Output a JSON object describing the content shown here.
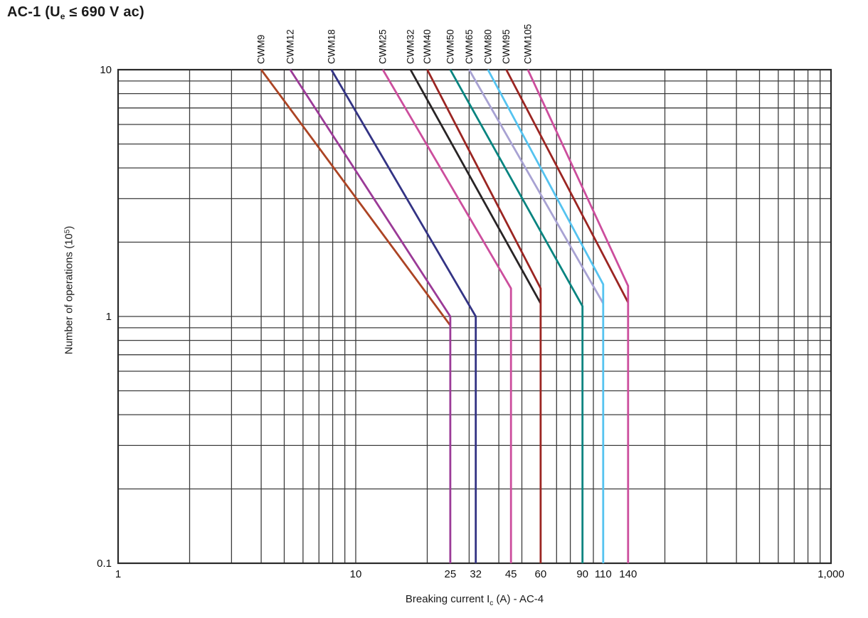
{
  "header": {
    "title_pre": "AC-1 (U",
    "title_sub": "e",
    "title_post": " ≤ 690 V ac)"
  },
  "axes": {
    "x_pre": "Breaking current I",
    "x_sub": "c",
    "x_post": " (A) - AC-4",
    "y_pre": "Number of operations (10",
    "y_sup": "5",
    "y_post": ")"
  },
  "colors": {
    "grid": "#3c3c3c",
    "border": "#2a2a2a",
    "text": "#111111",
    "background": "#ffffff"
  },
  "chart_data": {
    "type": "line",
    "title": "AC-1 (Ue ≤ 690 V ac)",
    "xlabel": "Breaking current Ic (A) - AC-4",
    "ylabel": "Number of operations (10^5)",
    "x_scale": "log",
    "y_scale": "log",
    "xlim": [
      1,
      1000
    ],
    "ylim": [
      0.1,
      10
    ],
    "grid": "full log minor grid on both axes",
    "legend_position": "rotated labels above plot at each curve's top intercept",
    "x_ticks": [
      {
        "v": 1,
        "label": "1"
      },
      {
        "v": 10,
        "label": "10"
      },
      {
        "v": 25,
        "label": "25"
      },
      {
        "v": 32,
        "label": "32"
      },
      {
        "v": 45,
        "label": "45"
      },
      {
        "v": 60,
        "label": "60"
      },
      {
        "v": 90,
        "label": "90"
      },
      {
        "v": 110,
        "label": "110"
      },
      {
        "v": 140,
        "label": "140"
      },
      {
        "v": 1000,
        "label": "1,000"
      }
    ],
    "y_ticks": [
      {
        "v": 10,
        "label": "10"
      },
      {
        "v": 1,
        "label": "1"
      },
      {
        "v": 0.1,
        "label": "0.1"
      }
    ],
    "series": [
      {
        "name": "CWM9",
        "color": "#AC4424",
        "points": [
          [
            4.0,
            10
          ],
          [
            25,
            0.92
          ]
        ]
      },
      {
        "name": "CWM12",
        "color": "#9B3A97",
        "points": [
          [
            5.3,
            10
          ],
          [
            25,
            1.0
          ],
          [
            25,
            0.1
          ]
        ]
      },
      {
        "name": "CWM18",
        "color": "#333384",
        "points": [
          [
            7.9,
            10
          ],
          [
            32,
            1.0
          ],
          [
            32,
            0.1
          ]
        ]
      },
      {
        "name": "CWM25",
        "color": "#CC4E9D",
        "points": [
          [
            13,
            10
          ],
          [
            45,
            1.3
          ],
          [
            45,
            0.1
          ]
        ]
      },
      {
        "name": "CWM32",
        "color": "#282425",
        "points": [
          [
            17,
            10
          ],
          [
            60,
            1.13
          ]
        ]
      },
      {
        "name": "CWM40",
        "color": "#9B2522",
        "points": [
          [
            20,
            10
          ],
          [
            60,
            1.3
          ],
          [
            60,
            0.1
          ]
        ]
      },
      {
        "name": "CWM50",
        "color": "#088480",
        "points": [
          [
            25,
            10
          ],
          [
            90,
            1.1
          ],
          [
            90,
            0.1
          ]
        ]
      },
      {
        "name": "CWM65",
        "color": "#A8A2D3",
        "points": [
          [
            30,
            10
          ],
          [
            110,
            1.13
          ]
        ]
      },
      {
        "name": "CWM80",
        "color": "#55C3F0",
        "points": [
          [
            36,
            10
          ],
          [
            110,
            1.35
          ],
          [
            110,
            0.1
          ]
        ]
      },
      {
        "name": "CWM95",
        "color": "#9B2522",
        "points": [
          [
            43,
            10
          ],
          [
            140,
            1.14
          ]
        ]
      },
      {
        "name": "CWM105",
        "color": "#CC4E9D",
        "points": [
          [
            53,
            10
          ],
          [
            140,
            1.33
          ],
          [
            140,
            0.1
          ]
        ]
      }
    ]
  }
}
